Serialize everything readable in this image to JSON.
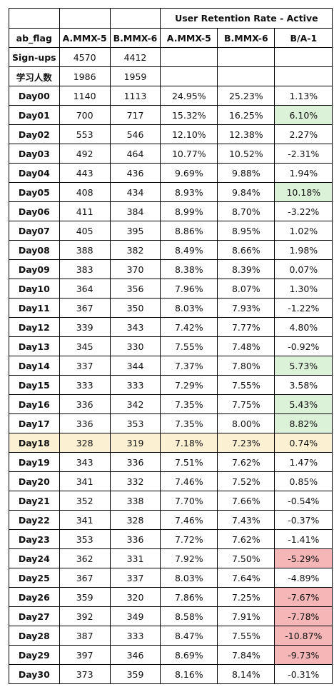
{
  "table": {
    "group_header": "User Retention Rate - Active",
    "columns": [
      "ab_flag",
      "A.MMX-5",
      "B.MMX-6",
      "A.MMX-5",
      "B.MMX-6",
      "B/A-1"
    ],
    "summary_rows": [
      {
        "label": "Sign-ups",
        "a": "4570",
        "b": "4412"
      },
      {
        "label": "学习人数",
        "a": "1986",
        "b": "1959"
      }
    ],
    "rows": [
      {
        "label": "Day00",
        "a": "1140",
        "b": "1113",
        "ra": "24.95%",
        "rb": "25.23%",
        "diff": "1.13%",
        "hl": ""
      },
      {
        "label": "Day01",
        "a": "700",
        "b": "717",
        "ra": "15.32%",
        "rb": "16.25%",
        "diff": "6.10%",
        "hl": "green"
      },
      {
        "label": "Day02",
        "a": "553",
        "b": "546",
        "ra": "12.10%",
        "rb": "12.38%",
        "diff": "2.27%",
        "hl": ""
      },
      {
        "label": "Day03",
        "a": "492",
        "b": "464",
        "ra": "10.77%",
        "rb": "10.52%",
        "diff": "-2.31%",
        "hl": ""
      },
      {
        "label": "Day04",
        "a": "443",
        "b": "436",
        "ra": "9.69%",
        "rb": "9.88%",
        "diff": "1.94%",
        "hl": ""
      },
      {
        "label": "Day05",
        "a": "408",
        "b": "434",
        "ra": "8.93%",
        "rb": "9.84%",
        "diff": "10.18%",
        "hl": "green"
      },
      {
        "label": "Day06",
        "a": "411",
        "b": "384",
        "ra": "8.99%",
        "rb": "8.70%",
        "diff": "-3.22%",
        "hl": ""
      },
      {
        "label": "Day07",
        "a": "405",
        "b": "395",
        "ra": "8.86%",
        "rb": "8.95%",
        "diff": "1.02%",
        "hl": ""
      },
      {
        "label": "Day08",
        "a": "388",
        "b": "382",
        "ra": "8.49%",
        "rb": "8.66%",
        "diff": "1.98%",
        "hl": ""
      },
      {
        "label": "Day09",
        "a": "383",
        "b": "370",
        "ra": "8.38%",
        "rb": "8.39%",
        "diff": "0.07%",
        "hl": ""
      },
      {
        "label": "Day10",
        "a": "364",
        "b": "356",
        "ra": "7.96%",
        "rb": "8.07%",
        "diff": "1.30%",
        "hl": ""
      },
      {
        "label": "Day11",
        "a": "367",
        "b": "350",
        "ra": "8.03%",
        "rb": "7.93%",
        "diff": "-1.22%",
        "hl": ""
      },
      {
        "label": "Day12",
        "a": "339",
        "b": "343",
        "ra": "7.42%",
        "rb": "7.77%",
        "diff": "4.80%",
        "hl": ""
      },
      {
        "label": "Day13",
        "a": "345",
        "b": "330",
        "ra": "7.55%",
        "rb": "7.48%",
        "diff": "-0.92%",
        "hl": ""
      },
      {
        "label": "Day14",
        "a": "337",
        "b": "344",
        "ra": "7.37%",
        "rb": "7.80%",
        "diff": "5.73%",
        "hl": "green"
      },
      {
        "label": "Day15",
        "a": "333",
        "b": "333",
        "ra": "7.29%",
        "rb": "7.55%",
        "diff": "3.58%",
        "hl": ""
      },
      {
        "label": "Day16",
        "a": "336",
        "b": "342",
        "ra": "7.35%",
        "rb": "7.75%",
        "diff": "5.43%",
        "hl": "green"
      },
      {
        "label": "Day17",
        "a": "336",
        "b": "353",
        "ra": "7.35%",
        "rb": "8.00%",
        "diff": "8.82%",
        "hl": "green"
      },
      {
        "label": "Day18",
        "a": "328",
        "b": "319",
        "ra": "7.18%",
        "rb": "7.23%",
        "diff": "0.74%",
        "hl": "row"
      },
      {
        "label": "Day19",
        "a": "343",
        "b": "336",
        "ra": "7.51%",
        "rb": "7.62%",
        "diff": "1.47%",
        "hl": ""
      },
      {
        "label": "Day20",
        "a": "341",
        "b": "332",
        "ra": "7.46%",
        "rb": "7.52%",
        "diff": "0.85%",
        "hl": ""
      },
      {
        "label": "Day21",
        "a": "352",
        "b": "338",
        "ra": "7.70%",
        "rb": "7.66%",
        "diff": "-0.54%",
        "hl": ""
      },
      {
        "label": "Day22",
        "a": "341",
        "b": "328",
        "ra": "7.46%",
        "rb": "7.43%",
        "diff": "-0.37%",
        "hl": ""
      },
      {
        "label": "Day23",
        "a": "353",
        "b": "336",
        "ra": "7.72%",
        "rb": "7.62%",
        "diff": "-1.41%",
        "hl": ""
      },
      {
        "label": "Day24",
        "a": "362",
        "b": "331",
        "ra": "7.92%",
        "rb": "7.50%",
        "diff": "-5.29%",
        "hl": "red"
      },
      {
        "label": "Day25",
        "a": "367",
        "b": "337",
        "ra": "8.03%",
        "rb": "7.64%",
        "diff": "-4.89%",
        "hl": ""
      },
      {
        "label": "Day26",
        "a": "359",
        "b": "320",
        "ra": "7.86%",
        "rb": "7.25%",
        "diff": "-7.67%",
        "hl": "red"
      },
      {
        "label": "Day27",
        "a": "392",
        "b": "349",
        "ra": "8.58%",
        "rb": "7.91%",
        "diff": "-7.78%",
        "hl": "red"
      },
      {
        "label": "Day28",
        "a": "387",
        "b": "333",
        "ra": "8.47%",
        "rb": "7.55%",
        "diff": "-10.87%",
        "hl": "red"
      },
      {
        "label": "Day29",
        "a": "397",
        "b": "346",
        "ra": "8.69%",
        "rb": "7.84%",
        "diff": "-9.73%",
        "hl": "red"
      },
      {
        "label": "Day30",
        "a": "373",
        "b": "359",
        "ra": "8.16%",
        "rb": "8.14%",
        "diff": "-0.31%",
        "hl": ""
      }
    ]
  },
  "colors": {
    "positive_highlight": "#dcf2d8",
    "negative_highlight": "#f4b6b6",
    "row_highlight": "#fbf0d2",
    "border": "#000000"
  }
}
